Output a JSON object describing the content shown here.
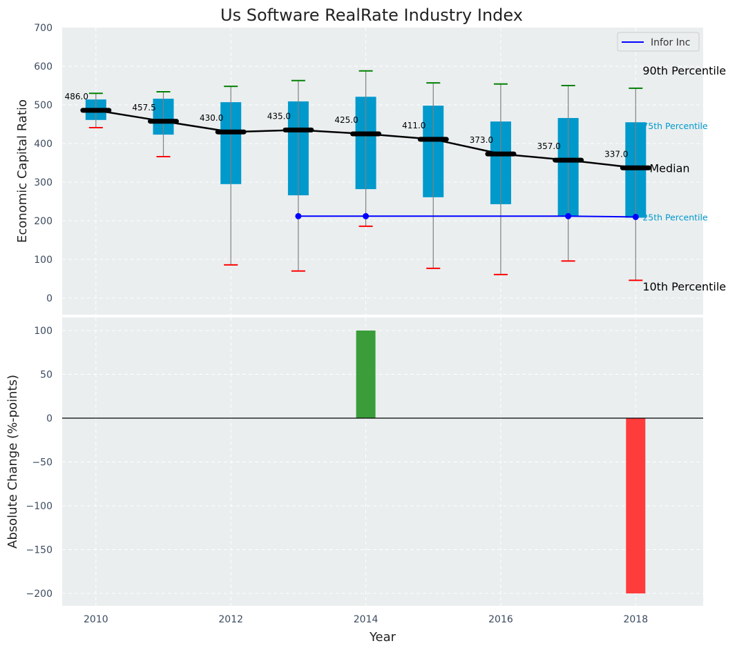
{
  "chart_data": [
    {
      "type": "box",
      "title": "Us Software RealRate Industry Index",
      "xlabel": "",
      "ylabel": "Economic Capital Ratio",
      "ylim": [
        -40,
        700
      ],
      "xlim": [
        2009.5,
        2019
      ],
      "yticks": [
        0,
        100,
        200,
        300,
        400,
        500,
        600,
        700
      ],
      "grid": true,
      "legend": {
        "placement": "top-right",
        "entries": [
          {
            "label": "Infor Inc",
            "color": "#0000ff"
          }
        ]
      },
      "years": [
        2010,
        2011,
        2012,
        2013,
        2014,
        2015,
        2016,
        2017,
        2018
      ],
      "p10": [
        441,
        366,
        86,
        70,
        186,
        77,
        61,
        96,
        46
      ],
      "p25": [
        461,
        423,
        295,
        266,
        282,
        261,
        243,
        211,
        208
      ],
      "median": [
        486.0,
        457.5,
        430.0,
        435.0,
        425.0,
        411.0,
        373.0,
        357.0,
        337.0
      ],
      "p75": [
        514,
        516,
        507,
        509,
        521,
        498,
        457,
        466,
        455
      ],
      "p90": [
        530,
        534,
        548,
        563,
        588,
        557,
        554,
        550,
        543
      ],
      "median_labels": [
        "486.0",
        "457.5",
        "430.0",
        "435.0",
        "425.0",
        "411.0",
        "373.0",
        "357.0",
        "337.0"
      ],
      "company_series": {
        "name": "Infor Inc",
        "x": [
          2013,
          2014,
          2017,
          2018
        ],
        "y": [
          212,
          212,
          212,
          210
        ],
        "color": "#0000ff"
      },
      "percentile_labels": {
        "p90": "90th Percentile",
        "p75": "75th Percentile",
        "median": "Median",
        "p25": "25th Percentile",
        "p10": "10th Percentile"
      },
      "colors": {
        "box": "#0099cc",
        "median": "#000000",
        "p90": "#008000",
        "p10": "#ff0000",
        "whisker": "#808080"
      }
    },
    {
      "type": "bar",
      "xlabel": "Year",
      "ylabel": "Absolute Change (%-points)",
      "ylim": [
        -214,
        115
      ],
      "xlim": [
        2009.5,
        2019
      ],
      "yticks": [
        -200,
        -150,
        -100,
        -50,
        0,
        50,
        100
      ],
      "xticks": [
        2010,
        2012,
        2014,
        2016,
        2018
      ],
      "grid": true,
      "bars": [
        {
          "x": 2014,
          "value": 100,
          "color": "#3a9d3a"
        },
        {
          "x": 2018,
          "value": -200,
          "color": "#ff3c3c"
        }
      ]
    }
  ],
  "tick_labels": {
    "top_y": [
      "0",
      "100",
      "200",
      "300",
      "400",
      "500",
      "600",
      "700"
    ],
    "bottom_y": [
      "−200",
      "−150",
      "−100",
      "−50",
      "0",
      "50",
      "100"
    ],
    "x": [
      "2010",
      "2012",
      "2014",
      "2016",
      "2018"
    ]
  }
}
